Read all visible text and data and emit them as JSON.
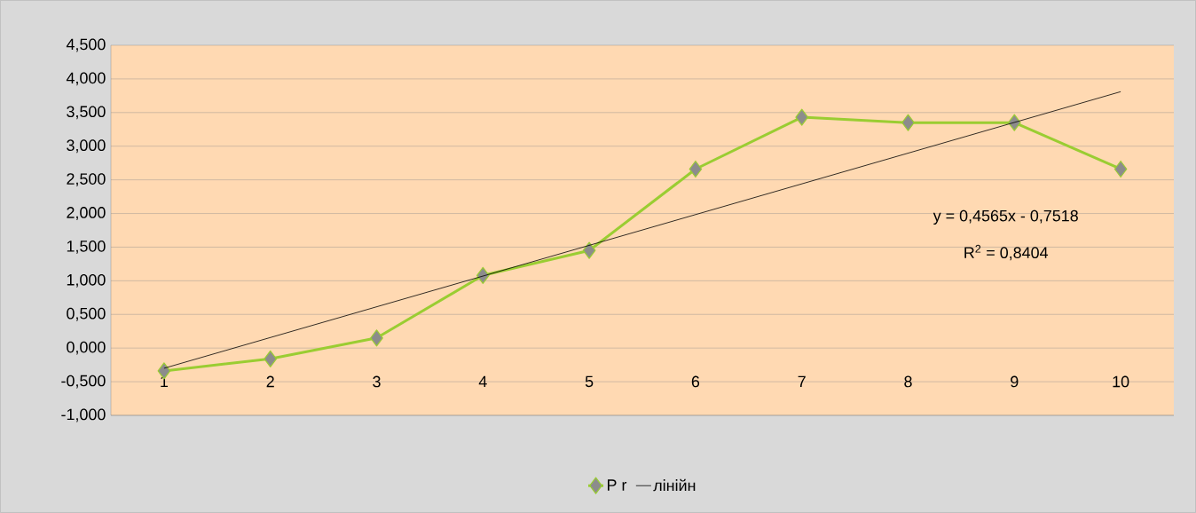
{
  "chart_data": {
    "type": "line",
    "x": [
      1,
      2,
      3,
      4,
      5,
      6,
      7,
      8,
      9,
      10
    ],
    "xlim": [
      0.5,
      10.5
    ],
    "xticks": [
      1,
      2,
      3,
      4,
      5,
      6,
      7,
      8,
      9,
      10
    ],
    "ylim": [
      -1,
      4.5
    ],
    "yticks": [
      {
        "value": -1,
        "label": "-1,000"
      },
      {
        "value": -0.5,
        "label": "-0,500"
      },
      {
        "value": 0,
        "label": "0,000"
      },
      {
        "value": 0.5,
        "label": "0,500"
      },
      {
        "value": 1,
        "label": "1,000"
      },
      {
        "value": 1.5,
        "label": "1,500"
      },
      {
        "value": 2,
        "label": "2,000"
      },
      {
        "value": 2.5,
        "label": "2,500"
      },
      {
        "value": 3,
        "label": "3,000"
      },
      {
        "value": 3.5,
        "label": "3,500"
      },
      {
        "value": 4,
        "label": "4,000"
      },
      {
        "value": 4.5,
        "label": "4,500"
      }
    ],
    "grid": "y",
    "legend": "bottom",
    "marker": "diamond",
    "series": [
      {
        "name": "P r",
        "color": "#9acd32",
        "values": [
          -0.34,
          -0.16,
          0.15,
          1.08,
          1.45,
          2.66,
          3.43,
          3.35,
          3.35,
          2.66
        ]
      },
      {
        "name": "лінійн",
        "type": "line",
        "color": "#000000",
        "x": [
          1,
          10
        ],
        "values": [
          -0.3,
          3.81
        ],
        "marker": "none"
      }
    ],
    "annotations": [
      "y = 0,4565x - 0,7518",
      "R$^{2}$ = 0,8404"
    ]
  }
}
